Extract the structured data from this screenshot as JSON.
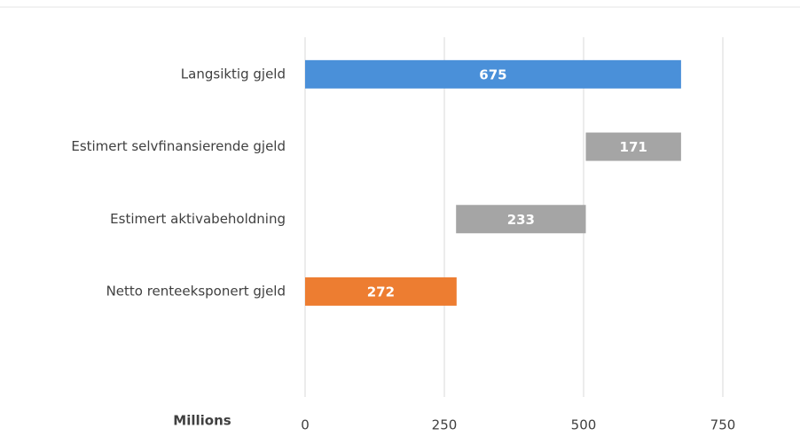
{
  "chart_data": {
    "type": "waterfall",
    "categories": [
      "Langsiktig gjeld",
      "Estimert selvfinansierende gjeld",
      "Estimert aktivabeholdning",
      "Netto renteeksponert gjeld"
    ],
    "values": [
      675,
      171,
      233,
      272
    ],
    "measures": [
      "total",
      "decrease",
      "decrease",
      "total"
    ],
    "colors": [
      "#4a90d9",
      "#a5a5a5",
      "#a5a5a5",
      "#ed7d31"
    ],
    "xlabel": "Millions",
    "xlim": [
      0,
      750
    ],
    "xticks": [
      0,
      250,
      500,
      750
    ],
    "grid": true,
    "orientation": "horizontal"
  }
}
